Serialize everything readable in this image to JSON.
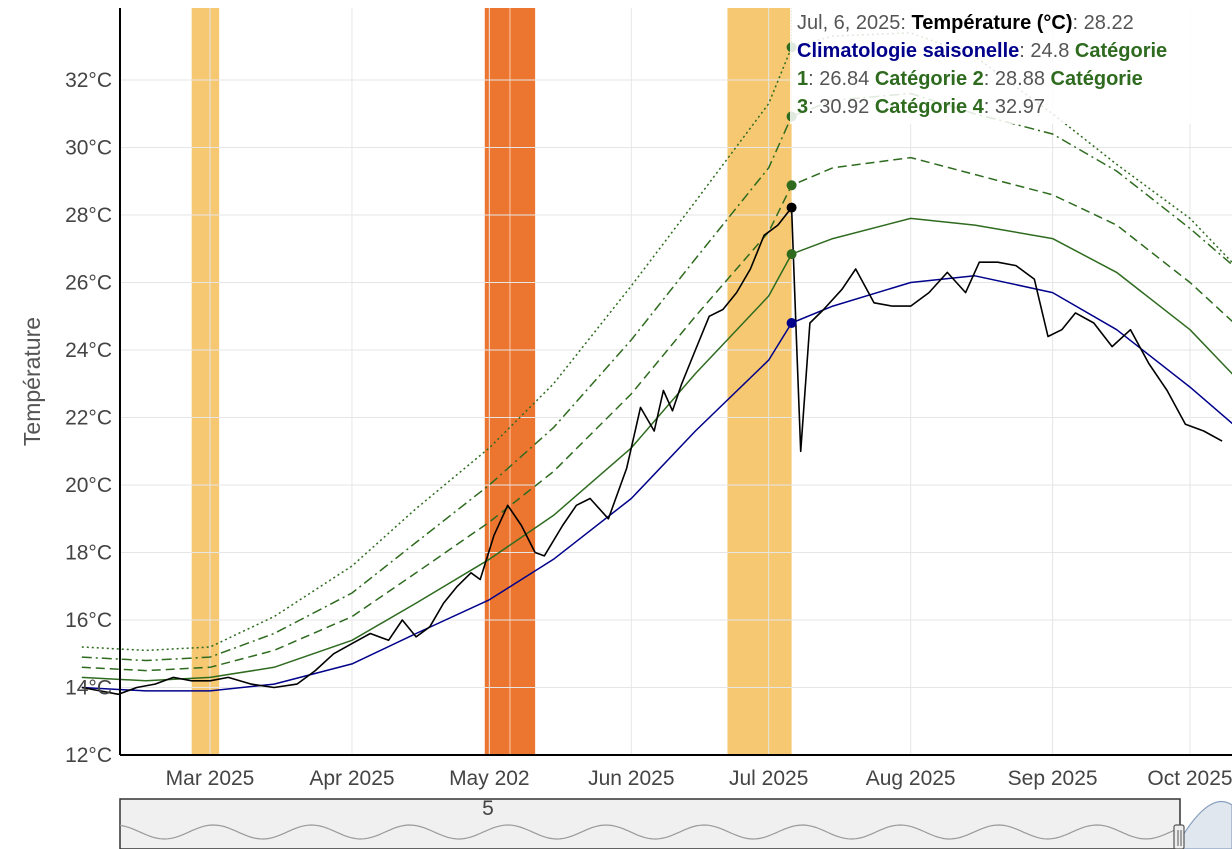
{
  "chart_data": {
    "type": "line",
    "title": "",
    "xlabel": "",
    "ylabel": "Température",
    "x_range": [
      "2025-02-01",
      "2025-10-13"
    ],
    "ylim": [
      12,
      34
    ],
    "y_ticks": [
      "12°C",
      "14°C",
      "16°C",
      "18°C",
      "20°C",
      "22°C",
      "24°C",
      "26°C",
      "28°C",
      "30°C",
      "32°C"
    ],
    "x_ticks": [
      {
        "date": "2025-03-01",
        "label": "Mar 2025"
      },
      {
        "date": "2025-04-01",
        "label": "Apr 2025"
      },
      {
        "date": "2025-05-01",
        "label": "May 202"
      },
      {
        "date": "2025-06-01",
        "label": "Jun 2025"
      },
      {
        "date": "2025-07-01",
        "label": "Jul 2025"
      },
      {
        "date": "2025-08-01",
        "label": "Aug 2025"
      },
      {
        "date": "2025-09-01",
        "label": "Sep 2025"
      },
      {
        "date": "2025-10-01",
        "label": "Oct 2025"
      }
    ],
    "grid": true,
    "bands": [
      {
        "start": "2025-02-25",
        "end": "2025-03-03",
        "category": "Catégorie 1",
        "color": "#f5c871"
      },
      {
        "start": "2025-04-30",
        "end": "2025-05-11",
        "category": "Catégorie 2",
        "color": "#ec7530"
      },
      {
        "start": "2025-06-22",
        "end": "2025-07-06",
        "category": "Catégorie 1",
        "color": "#f5c871"
      }
    ],
    "series": [
      {
        "name": "Température (°C)",
        "color": "#000000",
        "style": "solid",
        "points": [
          [
            "2025-02-01",
            14.0
          ],
          [
            "2025-02-05",
            13.9
          ],
          [
            "2025-02-09",
            13.8
          ],
          [
            "2025-02-13",
            14.0
          ],
          [
            "2025-02-17",
            14.1
          ],
          [
            "2025-02-21",
            14.3
          ],
          [
            "2025-02-25",
            14.2
          ],
          [
            "2025-03-01",
            14.2
          ],
          [
            "2025-03-05",
            14.3
          ],
          [
            "2025-03-10",
            14.1
          ],
          [
            "2025-03-15",
            14.0
          ],
          [
            "2025-03-20",
            14.1
          ],
          [
            "2025-03-24",
            14.5
          ],
          [
            "2025-03-28",
            15.0
          ],
          [
            "2025-04-01",
            15.3
          ],
          [
            "2025-04-05",
            15.6
          ],
          [
            "2025-04-09",
            15.4
          ],
          [
            "2025-04-12",
            16.0
          ],
          [
            "2025-04-15",
            15.5
          ],
          [
            "2025-04-18",
            15.8
          ],
          [
            "2025-04-21",
            16.5
          ],
          [
            "2025-04-24",
            17.0
          ],
          [
            "2025-04-27",
            17.4
          ],
          [
            "2025-04-29",
            17.2
          ],
          [
            "2025-05-02",
            18.5
          ],
          [
            "2025-05-05",
            19.4
          ],
          [
            "2025-05-08",
            18.8
          ],
          [
            "2025-05-11",
            18.0
          ],
          [
            "2025-05-13",
            17.9
          ],
          [
            "2025-05-17",
            18.8
          ],
          [
            "2025-05-20",
            19.4
          ],
          [
            "2025-05-23",
            19.6
          ],
          [
            "2025-05-27",
            19.0
          ],
          [
            "2025-05-31",
            20.5
          ],
          [
            "2025-06-03",
            22.3
          ],
          [
            "2025-06-06",
            21.6
          ],
          [
            "2025-06-08",
            22.8
          ],
          [
            "2025-06-10",
            22.2
          ],
          [
            "2025-06-12",
            23.0
          ],
          [
            "2025-06-15",
            24.0
          ],
          [
            "2025-06-18",
            25.0
          ],
          [
            "2025-06-21",
            25.2
          ],
          [
            "2025-06-24",
            25.7
          ],
          [
            "2025-06-27",
            26.4
          ],
          [
            "2025-06-30",
            27.4
          ],
          [
            "2025-07-03",
            27.7
          ],
          [
            "2025-07-06",
            28.22
          ],
          [
            "2025-07-07",
            24.5
          ],
          [
            "2025-07-08",
            21.0
          ],
          [
            "2025-07-10",
            24.8
          ],
          [
            "2025-07-13",
            25.2
          ],
          [
            "2025-07-17",
            25.8
          ],
          [
            "2025-07-20",
            26.4
          ],
          [
            "2025-07-24",
            25.4
          ],
          [
            "2025-07-28",
            25.3
          ],
          [
            "2025-08-01",
            25.3
          ],
          [
            "2025-08-05",
            25.7
          ],
          [
            "2025-08-09",
            26.3
          ],
          [
            "2025-08-13",
            25.7
          ],
          [
            "2025-08-16",
            26.6
          ],
          [
            "2025-08-20",
            26.6
          ],
          [
            "2025-08-24",
            26.5
          ],
          [
            "2025-08-28",
            26.1
          ],
          [
            "2025-08-31",
            24.4
          ],
          [
            "2025-09-03",
            24.6
          ],
          [
            "2025-09-06",
            25.1
          ],
          [
            "2025-09-10",
            24.8
          ],
          [
            "2025-09-14",
            24.1
          ],
          [
            "2025-09-18",
            24.6
          ],
          [
            "2025-09-22",
            23.6
          ],
          [
            "2025-09-26",
            22.8
          ],
          [
            "2025-09-30",
            21.8
          ],
          [
            "2025-10-04",
            21.6
          ],
          [
            "2025-10-08",
            21.3
          ]
        ]
      },
      {
        "name": "Climatologie saisonelle",
        "color": "#00008b",
        "style": "solid",
        "points": [
          [
            "2025-02-01",
            14.0
          ],
          [
            "2025-02-15",
            13.9
          ],
          [
            "2025-03-01",
            13.9
          ],
          [
            "2025-03-15",
            14.1
          ],
          [
            "2025-04-01",
            14.7
          ],
          [
            "2025-04-15",
            15.6
          ],
          [
            "2025-05-01",
            16.6
          ],
          [
            "2025-05-15",
            17.8
          ],
          [
            "2025-06-01",
            19.6
          ],
          [
            "2025-06-15",
            21.6
          ],
          [
            "2025-07-01",
            23.7
          ],
          [
            "2025-07-06",
            24.8
          ],
          [
            "2025-07-15",
            25.3
          ],
          [
            "2025-08-01",
            26.0
          ],
          [
            "2025-08-15",
            26.2
          ],
          [
            "2025-09-01",
            25.7
          ],
          [
            "2025-09-15",
            24.6
          ],
          [
            "2025-10-01",
            22.9
          ],
          [
            "2025-10-13",
            21.5
          ]
        ]
      },
      {
        "name": "Catégorie 1",
        "color": "#2e6b1f",
        "style": "solid",
        "points": [
          [
            "2025-02-01",
            14.3
          ],
          [
            "2025-02-15",
            14.2
          ],
          [
            "2025-03-01",
            14.3
          ],
          [
            "2025-03-15",
            14.6
          ],
          [
            "2025-04-01",
            15.4
          ],
          [
            "2025-04-15",
            16.5
          ],
          [
            "2025-05-01",
            17.8
          ],
          [
            "2025-05-15",
            19.1
          ],
          [
            "2025-06-01",
            21.1
          ],
          [
            "2025-06-15",
            23.3
          ],
          [
            "2025-07-01",
            25.6
          ],
          [
            "2025-07-06",
            26.84
          ],
          [
            "2025-07-15",
            27.3
          ],
          [
            "2025-08-01",
            27.9
          ],
          [
            "2025-08-15",
            27.7
          ],
          [
            "2025-09-01",
            27.3
          ],
          [
            "2025-09-15",
            26.3
          ],
          [
            "2025-10-01",
            24.6
          ],
          [
            "2025-10-13",
            22.9
          ]
        ]
      },
      {
        "name": "Catégorie 2",
        "color": "#2e6b1f",
        "style": "dashed",
        "points": [
          [
            "2025-02-01",
            14.6
          ],
          [
            "2025-02-15",
            14.5
          ],
          [
            "2025-03-01",
            14.6
          ],
          [
            "2025-03-15",
            15.1
          ],
          [
            "2025-04-01",
            16.1
          ],
          [
            "2025-04-15",
            17.4
          ],
          [
            "2025-05-01",
            18.9
          ],
          [
            "2025-05-15",
            20.4
          ],
          [
            "2025-06-01",
            22.7
          ],
          [
            "2025-06-15",
            25.0
          ],
          [
            "2025-07-01",
            27.5
          ],
          [
            "2025-07-06",
            28.88
          ],
          [
            "2025-07-15",
            29.4
          ],
          [
            "2025-08-01",
            29.7
          ],
          [
            "2025-08-15",
            29.2
          ],
          [
            "2025-09-01",
            28.6
          ],
          [
            "2025-09-15",
            27.7
          ],
          [
            "2025-10-01",
            26.0
          ],
          [
            "2025-10-13",
            24.5
          ]
        ]
      },
      {
        "name": "Catégorie 3",
        "color": "#2e6b1f",
        "style": "dashdot",
        "points": [
          [
            "2025-02-01",
            14.9
          ],
          [
            "2025-02-15",
            14.8
          ],
          [
            "2025-03-01",
            14.9
          ],
          [
            "2025-03-15",
            15.6
          ],
          [
            "2025-04-01",
            16.8
          ],
          [
            "2025-04-15",
            18.3
          ],
          [
            "2025-05-01",
            20.0
          ],
          [
            "2025-05-15",
            21.7
          ],
          [
            "2025-06-01",
            24.3
          ],
          [
            "2025-06-15",
            26.7
          ],
          [
            "2025-07-01",
            29.4
          ],
          [
            "2025-07-06",
            30.92
          ],
          [
            "2025-07-15",
            31.4
          ],
          [
            "2025-08-01",
            31.6
          ],
          [
            "2025-08-15",
            31.0
          ],
          [
            "2025-09-01",
            30.4
          ],
          [
            "2025-09-15",
            29.3
          ],
          [
            "2025-10-01",
            27.6
          ],
          [
            "2025-10-13",
            26.2
          ]
        ]
      },
      {
        "name": "Catégorie 4",
        "color": "#2e6b1f",
        "style": "dotted",
        "points": [
          [
            "2025-02-01",
            15.2
          ],
          [
            "2025-02-15",
            15.1
          ],
          [
            "2025-03-01",
            15.2
          ],
          [
            "2025-03-15",
            16.1
          ],
          [
            "2025-04-01",
            17.6
          ],
          [
            "2025-04-15",
            19.3
          ],
          [
            "2025-05-01",
            21.1
          ],
          [
            "2025-05-15",
            23.0
          ],
          [
            "2025-06-01",
            25.9
          ],
          [
            "2025-06-15",
            28.4
          ],
          [
            "2025-07-01",
            31.3
          ],
          [
            "2025-07-06",
            32.97
          ],
          [
            "2025-07-15",
            33.3
          ],
          [
            "2025-08-01",
            33.4
          ],
          [
            "2025-08-15",
            32.7
          ],
          [
            "2025-09-01",
            31.0
          ],
          [
            "2025-09-15",
            29.5
          ],
          [
            "2025-10-01",
            27.9
          ],
          [
            "2025-10-13",
            26.2
          ]
        ]
      }
    ],
    "hover": {
      "date": "2025-07-06",
      "date_label": "Jul, 6, 2025",
      "values": [
        {
          "label": "Température (°C)",
          "value": "28.22",
          "color": "#000000"
        },
        {
          "label": "Climatologie saisonelle",
          "value": "24.8",
          "color": "#00008b"
        },
        {
          "label": "Catégorie 1",
          "value": "26.84",
          "color": "#2e6b1f"
        },
        {
          "label": "Catégorie 2",
          "value": "28.88",
          "color": "#2e6b1f"
        },
        {
          "label": "Catégorie 3",
          "value": "30.92",
          "color": "#2e6b1f"
        },
        {
          "label": "Catégorie 4",
          "value": "32.97",
          "color": "#2e6b1f"
        }
      ],
      "lines": [
        [
          {
            "t": "Jul, 6, 2025",
            "b": false,
            "c": "#555555"
          },
          {
            "t": ": ",
            "b": false,
            "c": "#555555"
          },
          {
            "t": "Température (°C)",
            "b": true,
            "c": "#000000"
          },
          {
            "t": ": 28.22",
            "b": false,
            "c": "#555555"
          }
        ],
        [
          {
            "t": "Climatologie saisonelle",
            "b": true,
            "c": "#00008b"
          },
          {
            "t": ": 24.8 ",
            "b": false,
            "c": "#555555"
          },
          {
            "t": "Catégorie",
            "b": true,
            "c": "#2e6b1f"
          }
        ],
        [
          {
            "t": "1",
            "b": true,
            "c": "#2e6b1f"
          },
          {
            "t": ": 26.84 ",
            "b": false,
            "c": "#555555"
          },
          {
            "t": "Catégorie 2",
            "b": true,
            "c": "#2e6b1f"
          },
          {
            "t": ": 28.88 ",
            "b": false,
            "c": "#555555"
          },
          {
            "t": "Catégorie",
            "b": true,
            "c": "#2e6b1f"
          }
        ],
        [
          {
            "t": "3",
            "b": true,
            "c": "#2e6b1f"
          },
          {
            "t": ": 30.92 ",
            "b": false,
            "c": "#555555"
          },
          {
            "t": "Catégorie 4",
            "b": true,
            "c": "#2e6b1f"
          },
          {
            "t": ": 32.97",
            "b": false,
            "c": "#555555"
          }
        ]
      ]
    },
    "range_slider": {
      "label": "5"
    }
  }
}
